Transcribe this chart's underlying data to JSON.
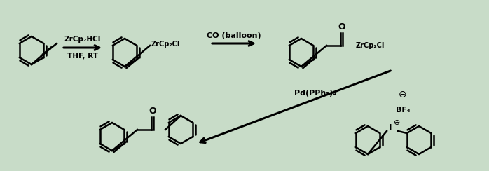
{
  "bg_color": "#c8dcc8",
  "text_color": "#000000",
  "reagent1_line1": "ZrCp₂HCl",
  "reagent1_line2": "THF, RT",
  "reagent2": "CO (balloon)",
  "reagent3": "Pd(PPh₃)₄",
  "label_zrcpcl": "ZrCp₂Cl",
  "label_zrcpcl2": "ZrCp₂Cl",
  "label_bf4": "BF₄",
  "figsize": [
    6.98,
    2.44
  ],
  "dpi": 100
}
